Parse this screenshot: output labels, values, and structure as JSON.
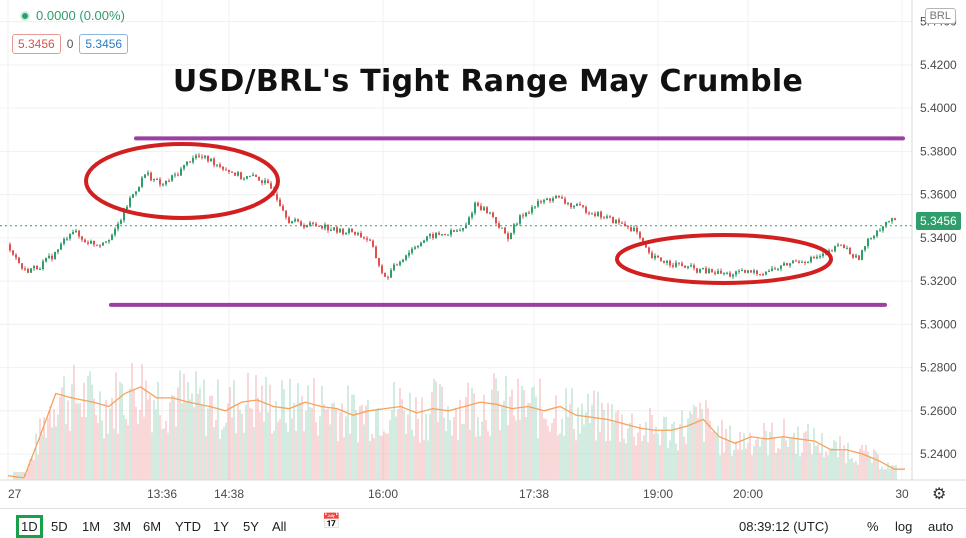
{
  "header": {
    "change_text": "0.0000 (0.00%)",
    "bid": "5.3456",
    "spread": "0",
    "ask": "5.3456",
    "currency_badge": "BRL"
  },
  "title": "USD/BRL's Tight Range May Crumble",
  "last_price_label": "5.3456",
  "colors": {
    "up": "#2e9e6a",
    "down": "#e05050",
    "volume_up": "#a7d8c4",
    "volume_down": "#f2b0b0",
    "volume_ma": "#f5a25c",
    "range_line": "#9b3fa3",
    "ellipse": "#d21f1f"
  },
  "bottom_bar": {
    "ranges": [
      "1D",
      "5D",
      "1M",
      "3M",
      "6M",
      "YTD",
      "1Y",
      "5Y",
      "All"
    ],
    "active_range": "1D",
    "clock": "08:39:12 (UTC)",
    "percent": "%",
    "log": "log",
    "auto": "auto"
  },
  "chart_data": {
    "type": "line",
    "symbol": "USD/BRL",
    "x_ticks": [
      "27",
      "13:36",
      "14:38",
      "16:00",
      "17:38",
      "19:00",
      "20:00",
      "30"
    ],
    "y_ticks": [
      "5.4400",
      "5.4200",
      "5.4000",
      "5.3800",
      "5.3600",
      "5.3400",
      "5.3200",
      "5.3000",
      "5.2800",
      "5.2600",
      "5.2400"
    ],
    "ylim": [
      5.228,
      5.45
    ],
    "price_series": {
      "name": "USD/BRL",
      "points": [
        [
          0,
          5.337
        ],
        [
          3,
          5.3245
        ],
        [
          6,
          5.327
        ],
        [
          9,
          5.333
        ],
        [
          12,
          5.344
        ],
        [
          14,
          5.339
        ],
        [
          17,
          5.337
        ],
        [
          20,
          5.342
        ],
        [
          23,
          5.358
        ],
        [
          26,
          5.37
        ],
        [
          29,
          5.364
        ],
        [
          32,
          5.37
        ],
        [
          35,
          5.378
        ],
        [
          38,
          5.376
        ],
        [
          41,
          5.372
        ],
        [
          44,
          5.368
        ],
        [
          47,
          5.368
        ],
        [
          50,
          5.362
        ],
        [
          53,
          5.348
        ],
        [
          56,
          5.346
        ],
        [
          59,
          5.346
        ],
        [
          62,
          5.343
        ],
        [
          65,
          5.343
        ],
        [
          68,
          5.339
        ],
        [
          71,
          5.321
        ],
        [
          74,
          5.33
        ],
        [
          77,
          5.337
        ],
        [
          80,
          5.341
        ],
        [
          83,
          5.342
        ],
        [
          86,
          5.344
        ],
        [
          88,
          5.356
        ],
        [
          91,
          5.351
        ],
        [
          94,
          5.34
        ],
        [
          97,
          5.351
        ],
        [
          100,
          5.356
        ],
        [
          103,
          5.359
        ],
        [
          106,
          5.355
        ],
        [
          109,
          5.353
        ],
        [
          112,
          5.35
        ],
        [
          115,
          5.347
        ],
        [
          118,
          5.344
        ],
        [
          121,
          5.331
        ],
        [
          124,
          5.329
        ],
        [
          127,
          5.327
        ],
        [
          130,
          5.325
        ],
        [
          133,
          5.324
        ],
        [
          136,
          5.323
        ],
        [
          139,
          5.324
        ],
        [
          142,
          5.324
        ],
        [
          145,
          5.326
        ],
        [
          148,
          5.329
        ],
        [
          151,
          5.33
        ],
        [
          154,
          5.332
        ],
        [
          157,
          5.337
        ],
        [
          160,
          5.33
        ],
        [
          163,
          5.342
        ],
        [
          166,
          5.348
        ],
        [
          169,
          5.346
        ]
      ]
    },
    "volume_ma": {
      "name": "Volume MA",
      "points": [
        [
          0,
          5.23
        ],
        [
          3,
          5.229
        ],
        [
          6,
          5.248
        ],
        [
          9,
          5.268
        ],
        [
          12,
          5.266
        ],
        [
          16,
          5.264
        ],
        [
          19,
          5.262
        ],
        [
          22,
          5.268
        ],
        [
          25,
          5.271
        ],
        [
          28,
          5.266
        ],
        [
          31,
          5.266
        ],
        [
          34,
          5.264
        ],
        [
          38,
          5.262
        ],
        [
          41,
          5.26
        ],
        [
          44,
          5.264
        ],
        [
          47,
          5.265
        ],
        [
          50,
          5.262
        ],
        [
          53,
          5.261
        ],
        [
          56,
          5.264
        ],
        [
          59,
          5.262
        ],
        [
          62,
          5.261
        ],
        [
          65,
          5.258
        ],
        [
          68,
          5.26
        ],
        [
          71,
          5.261
        ],
        [
          74,
          5.262
        ],
        [
          77,
          5.259
        ],
        [
          80,
          5.261
        ],
        [
          83,
          5.26
        ],
        [
          86,
          5.262
        ],
        [
          89,
          5.264
        ],
        [
          92,
          5.263
        ],
        [
          95,
          5.261
        ],
        [
          98,
          5.262
        ],
        [
          101,
          5.26
        ],
        [
          104,
          5.262
        ],
        [
          107,
          5.258
        ],
        [
          110,
          5.257
        ],
        [
          113,
          5.256
        ],
        [
          116,
          5.254
        ],
        [
          119,
          5.252
        ],
        [
          122,
          5.251
        ],
        [
          125,
          5.251
        ],
        [
          128,
          5.253
        ],
        [
          131,
          5.256
        ],
        [
          134,
          5.248
        ],
        [
          137,
          5.245
        ],
        [
          140,
          5.248
        ],
        [
          143,
          5.247
        ],
        [
          146,
          5.248
        ],
        [
          149,
          5.247
        ],
        [
          152,
          5.246
        ],
        [
          155,
          5.242
        ],
        [
          158,
          5.242
        ],
        [
          161,
          5.24
        ],
        [
          164,
          5.237
        ],
        [
          167,
          5.233
        ],
        [
          169,
          5.233
        ]
      ]
    },
    "range_top": 5.386,
    "range_bottom": 5.309,
    "last_price": 5.3456,
    "annotations": [
      "ellipse around morning high",
      "ellipse around evening consolidation",
      "upper range line",
      "lower range line"
    ]
  }
}
